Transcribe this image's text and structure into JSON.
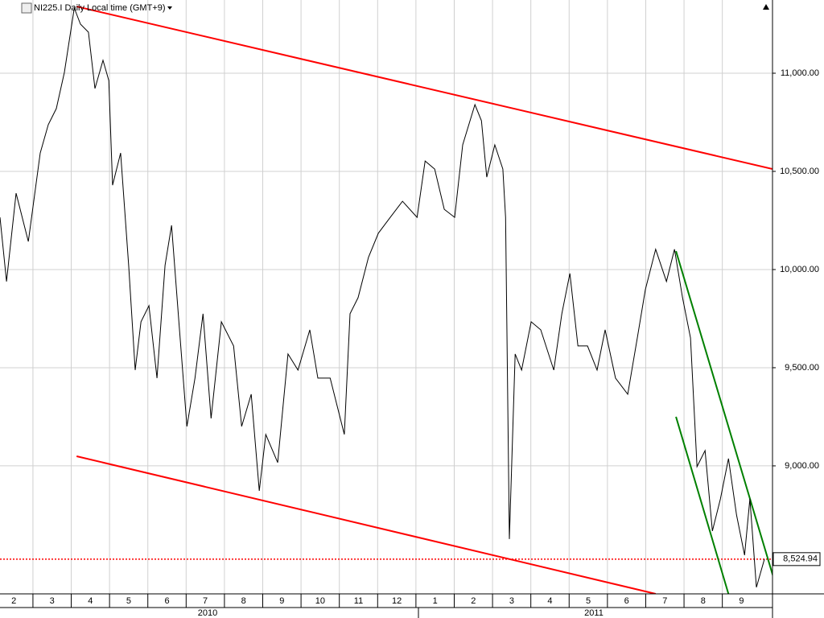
{
  "chart_data": {
    "type": "line",
    "title": "NI225.I Daily Local time (GMT+9)",
    "xlim": [
      -0.36,
      19.81
    ],
    "ylim": [
      8348,
      11373
    ],
    "grid": true,
    "xticks": [
      {
        "value": 0,
        "label": "2"
      },
      {
        "value": 1,
        "label": "3"
      },
      {
        "value": 2,
        "label": "4"
      },
      {
        "value": 3,
        "label": "5"
      },
      {
        "value": 4,
        "label": "6"
      },
      {
        "value": 5,
        "label": "7"
      },
      {
        "value": 6,
        "label": "8"
      },
      {
        "value": 7,
        "label": "9"
      },
      {
        "value": 8,
        "label": "10"
      },
      {
        "value": 9,
        "label": "11"
      },
      {
        "value": 10,
        "label": "12"
      },
      {
        "value": 11,
        "label": "1"
      },
      {
        "value": 12,
        "label": "2"
      },
      {
        "value": 13,
        "label": "3"
      },
      {
        "value": 14,
        "label": "4"
      },
      {
        "value": 15,
        "label": "5"
      },
      {
        "value": 16,
        "label": "6"
      },
      {
        "value": 17,
        "label": "7"
      },
      {
        "value": 18,
        "label": "8"
      },
      {
        "value": 19,
        "label": "9"
      }
    ],
    "years": [
      "2010",
      "2011"
    ],
    "yticks": [
      {
        "value": 9000,
        "label": "9,000.00"
      },
      {
        "value": 9500,
        "label": "9,500.00"
      },
      {
        "value": 10000,
        "label": "10,000.00"
      },
      {
        "value": 10500,
        "label": "10,500.00"
      },
      {
        "value": 11000,
        "label": "11,000.00"
      }
    ],
    "series": [
      {
        "name": "NI225.I",
        "color": "#000000",
        "x": [
          -0.36,
          -0.19,
          0.06,
          0.38,
          0.69,
          0.9,
          1.11,
          1.32,
          1.58,
          1.74,
          1.95,
          2.12,
          2.33,
          2.48,
          2.58,
          2.79,
          3.0,
          3.17,
          3.32,
          3.53,
          3.74,
          3.95,
          4.12,
          4.31,
          4.52,
          4.73,
          4.94,
          5.15,
          5.42,
          5.74,
          5.95,
          6.2,
          6.41,
          6.58,
          6.89,
          7.16,
          7.42,
          7.73,
          7.94,
          8.26,
          8.63,
          8.78,
          8.99,
          9.26,
          9.52,
          9.83,
          10.15,
          10.53,
          10.74,
          10.99,
          11.24,
          11.51,
          11.72,
          12.04,
          12.21,
          12.35,
          12.56,
          12.77,
          12.84,
          12.94,
          13.09,
          13.26,
          13.51,
          13.76,
          14.1,
          14.31,
          14.52,
          14.73,
          14.98,
          15.23,
          15.44,
          15.71,
          16.03,
          16.28,
          16.49,
          16.76,
          17.04,
          17.25,
          17.46,
          17.67,
          17.84,
          18.05,
          18.24,
          18.45,
          18.66,
          18.87,
          19.08,
          19.22,
          19.39,
          19.6
        ],
        "values": [
          10266,
          9939,
          10389,
          10143,
          10594,
          10738,
          10820,
          11004,
          11332,
          11250,
          11209,
          10922,
          11066,
          10963,
          10430,
          10594,
          10021,
          9488,
          9734,
          9816,
          9447,
          10021,
          10225,
          9734,
          9201,
          9447,
          9775,
          9242,
          9734,
          9611,
          9201,
          9365,
          8873,
          9160,
          9017,
          9570,
          9488,
          9693,
          9447,
          9447,
          9160,
          9775,
          9857,
          10062,
          10185,
          10266,
          10348,
          10266,
          10553,
          10512,
          10307,
          10266,
          10635,
          10840,
          10758,
          10471,
          10635,
          10512,
          10266,
          8627,
          9570,
          9488,
          9734,
          9693,
          9488,
          9775,
          9980,
          9611,
          9611,
          9488,
          9693,
          9447,
          9365,
          9652,
          9898,
          10103,
          9939,
          10103,
          9857,
          9652,
          8996,
          9078,
          8668,
          8832,
          9037,
          8750,
          8545,
          8832,
          8381,
          8524.94
        ]
      }
    ],
    "trendlines": [
      {
        "color": "#ff0000",
        "x": [
          1.64,
          19.81
        ],
        "values": [
          11340,
          10512
        ]
      },
      {
        "color": "#ff0000",
        "x": [
          1.64,
          16.76
        ],
        "values": [
          9049,
          8348
        ]
      },
      {
        "color": "#008000",
        "x": [
          17.29,
          19.85
        ],
        "values": [
          10094,
          8422
        ]
      },
      {
        "color": "#008000",
        "x": [
          17.29,
          18.66
        ],
        "values": [
          9250,
          8348
        ]
      }
    ],
    "last_price": {
      "value": 8524.94,
      "label": "8,524.94",
      "color": "#ff0000"
    }
  }
}
